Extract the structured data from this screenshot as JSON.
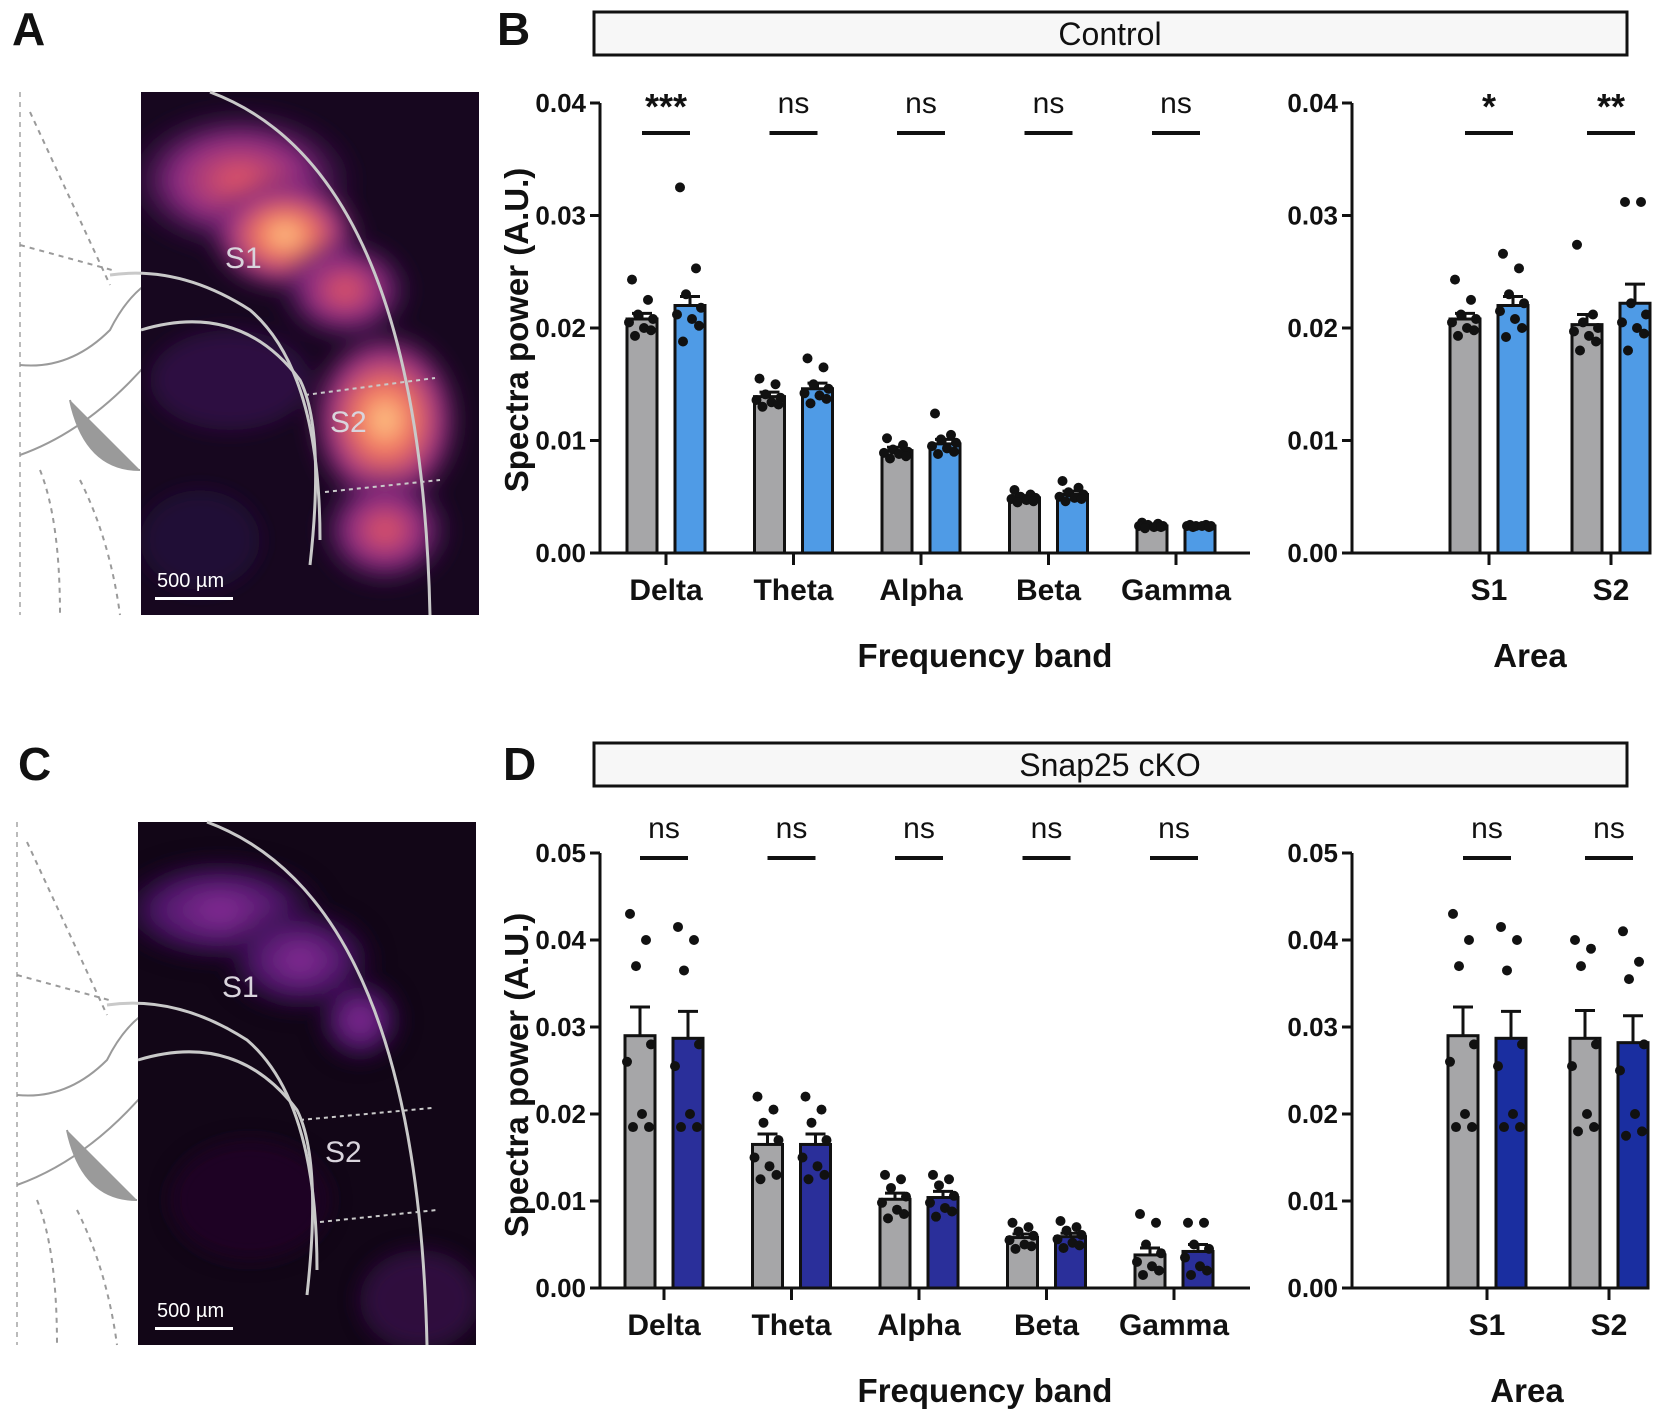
{
  "panel_labels": {
    "a": "A",
    "b": "B",
    "c": "C",
    "d": "D"
  },
  "images": [
    {
      "id": "A",
      "region_labels": [
        "S1",
        "S2"
      ],
      "scale_bar": "500 µm",
      "intensity": "high"
    },
    {
      "id": "C",
      "region_labels": [
        "S1",
        "S2"
      ],
      "scale_bar": "500 µm",
      "intensity": "low"
    }
  ],
  "colors": {
    "grey_bar": "#a6a6a8",
    "control_blue": "#4f9be6",
    "cko_blue": "#2a2f9a",
    "cko_blue_dark": "#1a2ea0",
    "axis": "#111111"
  },
  "chart_data": [
    {
      "id": "B-left",
      "type": "bar",
      "header": "Control",
      "title": "Control",
      "xlabel": "Frequency band",
      "ylabel": "Spectra power (A.U.)",
      "ylim": [
        0,
        0.04
      ],
      "yticks": [
        "0.00",
        "0.01",
        "0.02",
        "0.03",
        "0.04"
      ],
      "categories": [
        "Delta",
        "Theta",
        "Alpha",
        "Beta",
        "Gamma"
      ],
      "series": [
        {
          "name": "grey",
          "values": [
            0.0208,
            0.0139,
            0.0091,
            0.0049,
            0.0024
          ],
          "errors": [
            0.0005,
            0.0004,
            0.0003,
            0.0002,
            0.0001
          ]
        },
        {
          "name": "blue",
          "values": [
            0.022,
            0.0146,
            0.0097,
            0.0052,
            0.0024
          ],
          "errors": [
            0.0008,
            0.0005,
            0.0004,
            0.0003,
            0.0001
          ]
        }
      ],
      "points": [
        [
          [
            0.0243,
            0.0225,
            0.0212,
            0.0208,
            0.0205,
            0.02,
            0.0198,
            0.0193
          ],
          [
            0.0325,
            0.0253,
            0.023,
            0.0218,
            0.0212,
            0.0208,
            0.0202,
            0.0188
          ]
        ],
        [
          [
            0.0155,
            0.015,
            0.0141,
            0.0138,
            0.0136,
            0.0134,
            0.0132,
            0.013
          ],
          [
            0.0173,
            0.0165,
            0.015,
            0.0146,
            0.0142,
            0.014,
            0.0137,
            0.0133
          ]
        ],
        [
          [
            0.0102,
            0.0096,
            0.0092,
            0.009,
            0.0089,
            0.0088,
            0.0086,
            0.0084
          ],
          [
            0.0124,
            0.0105,
            0.0101,
            0.0098,
            0.0095,
            0.0093,
            0.009,
            0.0088
          ]
        ],
        [
          [
            0.0056,
            0.0052,
            0.005,
            0.0049,
            0.0048,
            0.0047,
            0.0046,
            0.0045
          ],
          [
            0.0064,
            0.0058,
            0.0054,
            0.0052,
            0.005,
            0.0049,
            0.0048,
            0.0046
          ]
        ],
        [
          [
            0.0027,
            0.0026,
            0.0025,
            0.0024,
            0.0024,
            0.0023,
            0.0023,
            0.0022
          ],
          [
            0.0025,
            0.0025,
            0.0024,
            0.0024,
            0.0024,
            0.0024,
            0.0023,
            0.0023
          ]
        ]
      ],
      "significance": [
        "***",
        "ns",
        "ns",
        "ns",
        "ns"
      ]
    },
    {
      "id": "B-right",
      "type": "bar",
      "xlabel": "Area",
      "ylim": [
        0,
        0.04
      ],
      "yticks": [
        "0.00",
        "0.01",
        "0.02",
        "0.03",
        "0.04"
      ],
      "categories": [
        "S1",
        "S2"
      ],
      "series": [
        {
          "name": "grey",
          "values": [
            0.0208,
            0.0203
          ],
          "errors": [
            0.0005,
            0.0009
          ]
        },
        {
          "name": "blue",
          "values": [
            0.022,
            0.0222
          ],
          "errors": [
            0.0008,
            0.0017
          ]
        }
      ],
      "points": [
        [
          [
            0.0243,
            0.0225,
            0.0212,
            0.0208,
            0.0205,
            0.02,
            0.0198,
            0.0193
          ],
          [
            0.0266,
            0.0253,
            0.023,
            0.0222,
            0.0215,
            0.0208,
            0.02,
            0.0192
          ]
        ],
        [
          [
            0.0274,
            0.0212,
            0.0205,
            0.02,
            0.0197,
            0.0193,
            0.0188,
            0.018
          ],
          [
            0.0312,
            0.0312,
            0.0222,
            0.0212,
            0.0205,
            0.02,
            0.0195,
            0.018
          ]
        ]
      ],
      "significance": [
        "*",
        "**"
      ]
    },
    {
      "id": "D-left",
      "type": "bar",
      "header": "Snap25 cKO",
      "title": "Snap25 cKO",
      "xlabel": "Frequency band",
      "ylabel": "Spectra power (A.U.)",
      "ylim": [
        0,
        0.05
      ],
      "yticks": [
        "0.00",
        "0.01",
        "0.02",
        "0.03",
        "0.04",
        "0.05"
      ],
      "categories": [
        "Delta",
        "Theta",
        "Alpha",
        "Beta",
        "Gamma"
      ],
      "series": [
        {
          "name": "grey",
          "values": [
            0.029,
            0.0165,
            0.0102,
            0.0058,
            0.0038
          ],
          "errors": [
            0.0033,
            0.0012,
            0.0007,
            0.0004,
            0.0008
          ]
        },
        {
          "name": "blue",
          "values": [
            0.0287,
            0.0165,
            0.0104,
            0.0059,
            0.0042
          ],
          "errors": [
            0.0031,
            0.0012,
            0.0007,
            0.0004,
            0.0008
          ]
        }
      ],
      "points": [
        [
          [
            0.043,
            0.04,
            0.037,
            0.028,
            0.026,
            0.02,
            0.0185,
            0.0185
          ],
          [
            0.0415,
            0.04,
            0.0365,
            0.028,
            0.0255,
            0.02,
            0.0185,
            0.0185
          ]
        ],
        [
          [
            0.022,
            0.0205,
            0.019,
            0.017,
            0.015,
            0.014,
            0.013,
            0.0125
          ],
          [
            0.022,
            0.0205,
            0.019,
            0.017,
            0.015,
            0.014,
            0.013,
            0.0125
          ]
        ],
        [
          [
            0.013,
            0.0125,
            0.0115,
            0.0105,
            0.0098,
            0.009,
            0.0085,
            0.008
          ],
          [
            0.013,
            0.0125,
            0.0118,
            0.0106,
            0.0098,
            0.0092,
            0.0088,
            0.0082
          ]
        ],
        [
          [
            0.0075,
            0.007,
            0.0065,
            0.006,
            0.0055,
            0.005,
            0.0048,
            0.0045
          ],
          [
            0.0077,
            0.007,
            0.0066,
            0.0061,
            0.0056,
            0.0052,
            0.0049,
            0.0046
          ]
        ],
        [
          [
            0.0085,
            0.0075,
            0.005,
            0.004,
            0.003,
            0.0025,
            0.002,
            0.0015
          ],
          [
            0.0075,
            0.0075,
            0.005,
            0.0045,
            0.0035,
            0.0025,
            0.002,
            0.0015
          ]
        ]
      ],
      "significance": [
        "ns",
        "ns",
        "ns",
        "ns",
        "ns"
      ]
    },
    {
      "id": "D-right",
      "type": "bar",
      "xlabel": "Area",
      "ylim": [
        0,
        0.05
      ],
      "yticks": [
        "0.00",
        "0.01",
        "0.02",
        "0.03",
        "0.04",
        "0.05"
      ],
      "categories": [
        "S1",
        "S2"
      ],
      "series": [
        {
          "name": "grey",
          "values": [
            0.029,
            0.0287
          ],
          "errors": [
            0.0033,
            0.0032
          ]
        },
        {
          "name": "blue",
          "values": [
            0.0287,
            0.0282
          ],
          "errors": [
            0.0031,
            0.0031
          ]
        }
      ],
      "points": [
        [
          [
            0.043,
            0.04,
            0.037,
            0.028,
            0.026,
            0.02,
            0.0185,
            0.0185
          ],
          [
            0.0415,
            0.04,
            0.0365,
            0.028,
            0.0255,
            0.02,
            0.0185,
            0.0185
          ]
        ],
        [
          [
            0.04,
            0.039,
            0.037,
            0.028,
            0.0255,
            0.02,
            0.0185,
            0.018
          ],
          [
            0.041,
            0.0375,
            0.0355,
            0.028,
            0.025,
            0.02,
            0.018,
            0.0175
          ]
        ]
      ],
      "significance": [
        "ns",
        "ns"
      ]
    }
  ]
}
